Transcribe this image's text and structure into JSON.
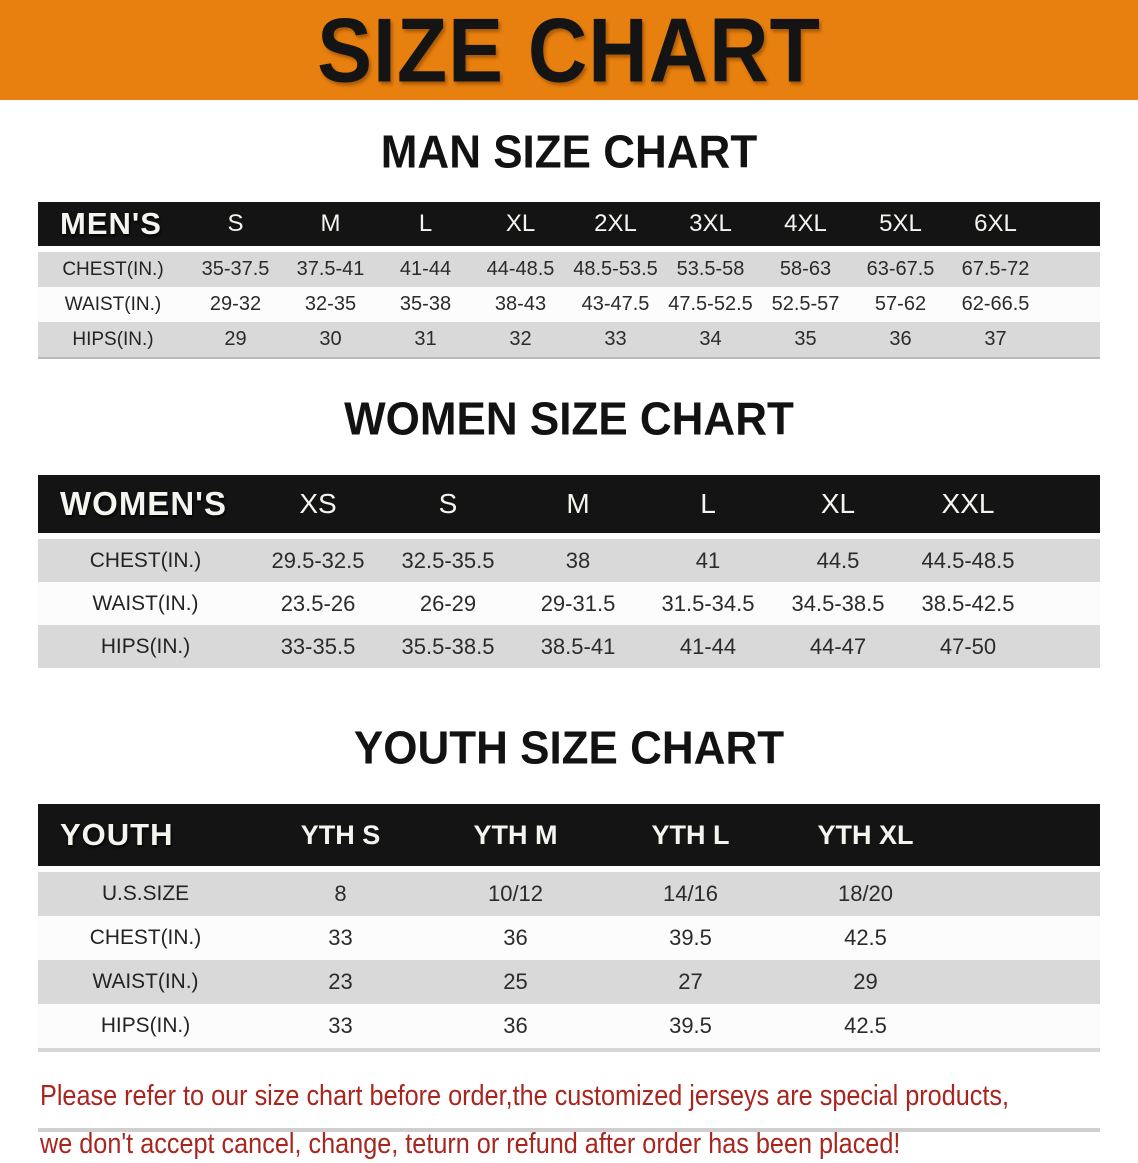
{
  "banner": {
    "title": "SIZE CHART"
  },
  "colors": {
    "banner_bg": "#E8800F",
    "header_bar_bg": "#141414",
    "row_shaded": "#D9D9D9",
    "row_plain": "#FCFCFC",
    "footer_text": "#A8261F"
  },
  "sections": [
    {
      "id": "men",
      "title": "MAN SIZE CHART",
      "group_label": "MEN'S",
      "size_headers": [
        "S",
        "M",
        "L",
        "XL",
        "2XL",
        "3XL",
        "4XL",
        "5XL",
        "6XL"
      ],
      "rows": [
        {
          "label": "CHEST(IN.)",
          "values": [
            "35-37.5",
            "37.5-41",
            "41-44",
            "44-48.5",
            "48.5-53.5",
            "53.5-58",
            "58-63",
            "63-67.5",
            "67.5-72"
          ]
        },
        {
          "label": "WAIST(IN.)",
          "values": [
            "29-32",
            "32-35",
            "35-38",
            "38-43",
            "43-47.5",
            "47.5-52.5",
            "52.5-57",
            "57-62",
            "62-66.5"
          ]
        },
        {
          "label": "HIPS(IN.)",
          "values": [
            "29",
            "30",
            "31",
            "32",
            "33",
            "34",
            "35",
            "36",
            "37"
          ]
        }
      ]
    },
    {
      "id": "women",
      "title": "WOMEN SIZE CHART",
      "group_label": "WOMEN'S",
      "size_headers": [
        "XS",
        "S",
        "M",
        "L",
        "XL",
        "XXL"
      ],
      "rows": [
        {
          "label": "CHEST(IN.)",
          "values": [
            "29.5-32.5",
            "32.5-35.5",
            "38",
            "41",
            "44.5",
            "44.5-48.5"
          ]
        },
        {
          "label": "WAIST(IN.)",
          "values": [
            "23.5-26",
            "26-29",
            "29-31.5",
            "31.5-34.5",
            "34.5-38.5",
            "38.5-42.5"
          ]
        },
        {
          "label": "HIPS(IN.)",
          "values": [
            "33-35.5",
            "35.5-38.5",
            "38.5-41",
            "41-44",
            "44-47",
            "47-50"
          ]
        }
      ]
    },
    {
      "id": "youth",
      "title": "YOUTH SIZE CHART",
      "group_label": "YOUTH",
      "size_headers": [
        "YTH S",
        "YTH M",
        "YTH L",
        "YTH XL"
      ],
      "rows": [
        {
          "label": "U.S.SIZE",
          "values": [
            "8",
            "10/12",
            "14/16",
            "18/20"
          ]
        },
        {
          "label": "CHEST(IN.)",
          "values": [
            "33",
            "36",
            "39.5",
            "42.5"
          ]
        },
        {
          "label": "WAIST(IN.)",
          "values": [
            "23",
            "25",
            "27",
            "29"
          ]
        },
        {
          "label": "HIPS(IN.)",
          "values": [
            "33",
            "36",
            "39.5",
            "42.5"
          ]
        }
      ]
    }
  ],
  "footer": {
    "line1": "Please refer to our size chart before order,the customized jerseys are special products,",
    "line2": "we don't accept cancel, change, teturn or refund after order has been placed!"
  }
}
